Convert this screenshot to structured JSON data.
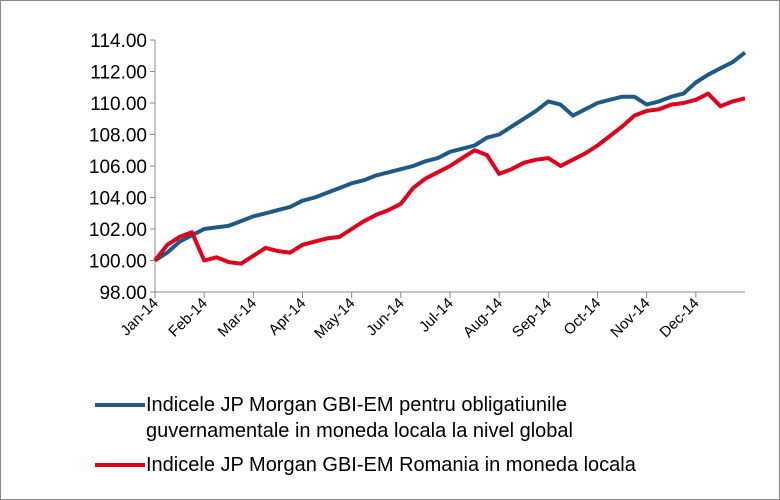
{
  "chart_data": {
    "type": "line",
    "categories": [
      "Jan-14",
      null,
      null,
      null,
      "Feb-14",
      null,
      null,
      null,
      "Mar-14",
      null,
      null,
      null,
      "Apr-14",
      null,
      null,
      null,
      "May-14",
      null,
      null,
      null,
      "Jun-14",
      null,
      null,
      null,
      "Jul-14",
      null,
      null,
      null,
      "Aug-14",
      null,
      null,
      null,
      "Sep-14",
      null,
      null,
      null,
      "Oct-14",
      null,
      null,
      null,
      "Nov-14",
      null,
      null,
      null,
      "Dec-14",
      null,
      null,
      null,
      null
    ],
    "series": [
      {
        "name": "Indicele JP Morgan GBI-EM pentru obligatiunile guvernamentale in moneda locala la nivel global",
        "color": "#1f5a87",
        "values": [
          100.0,
          100.5,
          101.2,
          101.6,
          102.0,
          102.1,
          102.2,
          102.5,
          102.8,
          103.0,
          103.2,
          103.4,
          103.8,
          104.0,
          104.3,
          104.6,
          104.9,
          105.1,
          105.4,
          105.6,
          105.8,
          106.0,
          106.3,
          106.5,
          106.9,
          107.1,
          107.3,
          107.8,
          108.0,
          108.5,
          109.0,
          109.5,
          110.1,
          109.9,
          109.2,
          109.6,
          110.0,
          110.2,
          110.4,
          110.4,
          109.9,
          110.1,
          110.4,
          110.6,
          111.3,
          111.8,
          112.2,
          112.6,
          113.2
        ]
      },
      {
        "name": "Indicele JP Morgan GBI-EM Romania in moneda locala",
        "color": "#e2001a",
        "values": [
          100.0,
          101.0,
          101.5,
          101.8,
          100.0,
          100.2,
          99.9,
          99.8,
          100.3,
          100.8,
          100.6,
          100.5,
          101.0,
          101.2,
          101.4,
          101.5,
          102.0,
          102.5,
          102.9,
          103.2,
          103.6,
          104.6,
          105.2,
          105.6,
          106.0,
          106.5,
          107.0,
          106.7,
          105.5,
          105.8,
          106.2,
          106.4,
          106.5,
          106.0,
          106.4,
          106.8,
          107.3,
          107.9,
          108.5,
          109.2,
          109.5,
          109.6,
          109.9,
          110.0,
          110.2,
          110.6,
          109.8,
          110.1,
          110.3
        ]
      }
    ],
    "ylim": [
      98,
      114
    ],
    "yticks": [
      {
        "value": 98,
        "label": "98.00"
      },
      {
        "value": 100,
        "label": "100.00"
      },
      {
        "value": 102,
        "label": "102.00"
      },
      {
        "value": 104,
        "label": "104.00"
      },
      {
        "value": 106,
        "label": "106.00"
      },
      {
        "value": 108,
        "label": "108.00"
      },
      {
        "value": 110,
        "label": "110.00"
      },
      {
        "value": 112,
        "label": "112.00"
      },
      {
        "value": 114,
        "label": "114.00"
      }
    ],
    "grid": false,
    "legend": "bottom"
  }
}
